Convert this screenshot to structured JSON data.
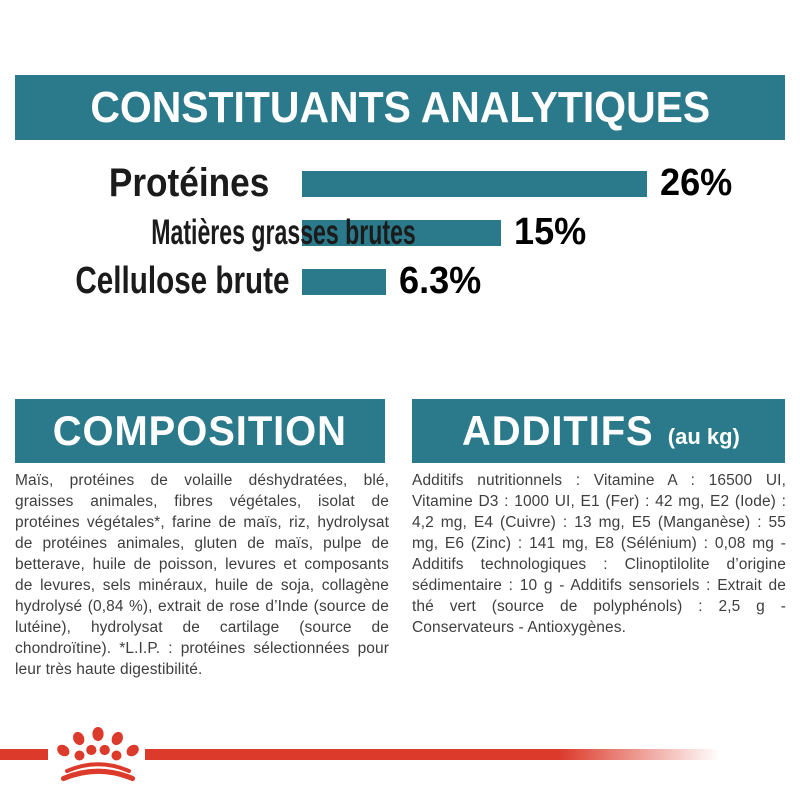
{
  "colors": {
    "teal": "#2a7a8b",
    "red": "#dc3a2b",
    "heading_text": "#ffffff",
    "chart_text": "#000000",
    "body_text": "#3e3e3e"
  },
  "header": {
    "title": "CONSTITUANTS ANALYTIQUES"
  },
  "chart_data": {
    "type": "bar",
    "orientation": "horizontal",
    "title": "CONSTITUANTS ANALYTIQUES",
    "categories": [
      "Protéines",
      "Matières grasses brutes",
      "Cellulose brute"
    ],
    "values": [
      26,
      15,
      6.3
    ],
    "value_labels": [
      "26%",
      "15%",
      "6.3%"
    ],
    "unit": "%",
    "xlim": [
      0,
      26
    ],
    "bar_color": "#2a7a8b",
    "grid": false,
    "legend": false
  },
  "composition": {
    "title": "COMPOSITION",
    "body": "Maïs, protéines de volaille déshydratées, blé, graisses animales, fibres végétales, isolat de protéines végétales*, farine de maïs, riz, hydrolysat de protéines animales, gluten de maïs, pulpe de betterave, huile de poisson, levures et composants de levures, sels minéraux, huile de soja, collagène hydrolysé (0,84 %), extrait de rose d’Inde (source de lutéine), hydrolysat de cartilage (source de chondroïtine). *L.I.P. : protéines sélectionnées pour leur très haute digestibilité."
  },
  "additifs": {
    "title": "ADDITIFS",
    "title_suffix": "(au kg)",
    "body": "Additifs nutritionnels : Vitamine A : 16500 UI, Vitamine D3 : 1000 UI, E1 (Fer) : 42 mg, E2 (Iode) : 4,2 mg, E4 (Cuivre) : 13 mg, E5 (Manganèse) : 55 mg, E6 (Zinc) : 141 mg, E8 (Sélénium) : 0,08 mg - Additifs technologiques : Clinoptilolite d’origine sédimentaire : 10 g - Additifs sensoriels : Extrait de thé vert (source de polyphénols) : 2,5 g - Conservateurs - Antioxygènes."
  },
  "footer": {
    "logo": "royal-canin-crown"
  }
}
